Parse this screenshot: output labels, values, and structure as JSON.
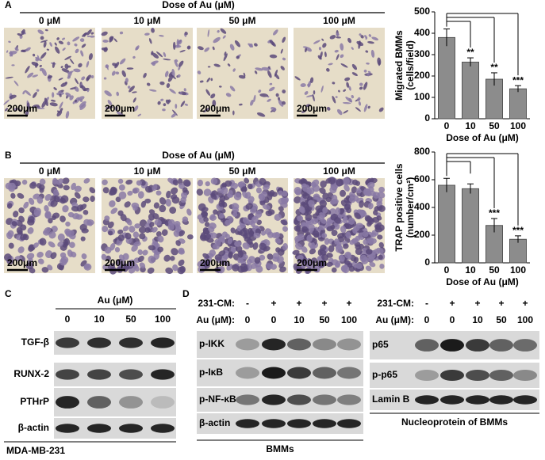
{
  "panels": {
    "A": {
      "label": "A",
      "header": "Dose of Au (μM)",
      "doses": [
        "0 μM",
        "10 μM",
        "50 μM",
        "100 μM"
      ],
      "scale_bars": [
        "200μm",
        "200μm",
        "200μm",
        "200μm"
      ]
    },
    "B": {
      "label": "B",
      "header": "Dose of Au (μM)",
      "doses": [
        "0 μM",
        "10 μM",
        "50 μM",
        "100 μM"
      ],
      "scale_bars": [
        "200μm",
        "200μm",
        "200μm",
        "200μm"
      ]
    },
    "C": {
      "label": "C",
      "header": "Au (μM)",
      "doses": [
        "0",
        "10",
        "50",
        "100"
      ],
      "rows": [
        "TGF-β",
        "RUNX-2",
        "PTHrP",
        "β-actin"
      ],
      "caption": "MDA-MB-231"
    },
    "D": {
      "label": "D",
      "left": {
        "cm_label": "231-CM:",
        "cm": [
          "-",
          "+",
          "+",
          "+",
          "+"
        ],
        "au_label": "Au (μM):",
        "au": [
          "0",
          "0",
          "10",
          "50",
          "100"
        ],
        "rows": [
          "p-IKK",
          "p-IκB",
          "p-NF-κB",
          "β-actin"
        ],
        "caption": "BMMs"
      },
      "right": {
        "cm_label": "231-CM:",
        "cm": [
          "-",
          "+",
          "+",
          "+",
          "+"
        ],
        "au_label": "Au (μM):",
        "au": [
          "0",
          "0",
          "10",
          "50",
          "100"
        ],
        "rows": [
          "p65",
          "p-p65",
          "Lamin B"
        ],
        "caption": "Nucleoprotein of BMMs"
      }
    }
  },
  "chart_data": [
    {
      "type": "bar",
      "ylabel": [
        "Migrated BMMs",
        "(cells/field)"
      ],
      "xlabel": "Dose of Au (μM)",
      "categories": [
        "0",
        "10",
        "50",
        "100"
      ],
      "values": [
        380,
        265,
        185,
        140
      ],
      "errors": [
        40,
        20,
        30,
        15
      ],
      "significance": [
        null,
        "**",
        "**",
        "***"
      ],
      "color": "#8c8c8c",
      "ylim": [
        0,
        500
      ],
      "yticks": [
        0,
        100,
        200,
        300,
        400,
        500
      ]
    },
    {
      "type": "bar",
      "ylabel": [
        "TRAP positive cells",
        "(number/cm²)"
      ],
      "xlabel": "Dose of Au (μM)",
      "categories": [
        "0",
        "10",
        "50",
        "100"
      ],
      "values": [
        560,
        535,
        270,
        170
      ],
      "errors": [
        50,
        35,
        50,
        25
      ],
      "significance": [
        null,
        null,
        "***",
        "***"
      ],
      "color": "#8c8c8c",
      "ylim": [
        0,
        800
      ],
      "yticks": [
        0,
        200,
        400,
        600,
        800
      ]
    }
  ]
}
